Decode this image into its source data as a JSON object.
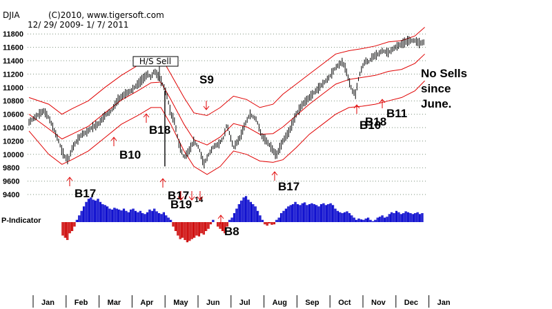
{
  "header": {
    "ticker": "DJIA",
    "copyright": "(C)2010, www.tigersoft.com",
    "date_range": "12/ 29/ 2009- 1/ 7/ 2011"
  },
  "chart_data": {
    "type": "line",
    "ylim": [
      9400,
      11800
    ],
    "yticks": [
      9400,
      9600,
      9800,
      10000,
      10200,
      10400,
      10600,
      10800,
      11000,
      11200,
      11400,
      11600,
      11800
    ],
    "months": [
      "Jan",
      "Feb",
      "Mar",
      "Apr",
      "May",
      "Jun",
      "Jul",
      "Aug",
      "Sep",
      "Oct",
      "Nov",
      "Dec",
      "Jan"
    ],
    "price_x_months": [
      0.0,
      0.15,
      0.3,
      0.45,
      0.6,
      0.75,
      0.9,
      1.0,
      1.1,
      1.2,
      1.3,
      1.45,
      1.6,
      1.75,
      1.9,
      2.1,
      2.3,
      2.5,
      2.7,
      2.9,
      3.1,
      3.3,
      3.5,
      3.6,
      3.7,
      3.8,
      3.9,
      4.0,
      4.1,
      4.2,
      4.3,
      4.4,
      4.55,
      4.7,
      4.85,
      5.0,
      5.15,
      5.3,
      5.45,
      5.6,
      5.75,
      5.9,
      6.0,
      6.2,
      6.4,
      6.55,
      6.7,
      6.9,
      7.05,
      7.2,
      7.35,
      7.5,
      7.7,
      7.9,
      8.1,
      8.3,
      8.5,
      8.7,
      8.9,
      9.1,
      9.3,
      9.5,
      9.6,
      9.7,
      9.8,
      9.9,
      10.0,
      10.1,
      10.2,
      10.3,
      10.4,
      10.5,
      10.6,
      10.7,
      10.9,
      11.1,
      11.3,
      11.5,
      11.7,
      11.85,
      12.0
    ],
    "price_values": [
      10480,
      10540,
      10600,
      10650,
      10550,
      10380,
      10200,
      10050,
      9950,
      9920,
      10080,
      10200,
      10300,
      10330,
      10400,
      10450,
      10580,
      10650,
      10820,
      10900,
      10950,
      11050,
      11150,
      11200,
      11150,
      11250,
      11180,
      11100,
      11000,
      10850,
      10600,
      10520,
      10150,
      9950,
      10050,
      10200,
      10100,
      9850,
      10000,
      10120,
      10150,
      10250,
      10450,
      10100,
      10250,
      10450,
      10600,
      10520,
      10280,
      10200,
      10100,
      9980,
      10200,
      10350,
      10600,
      10750,
      10850,
      10950,
      11050,
      11150,
      11300,
      11380,
      11280,
      11100,
      10950,
      10900,
      11150,
      11300,
      11400,
      11380,
      11450,
      11480,
      11500,
      11550,
      11520,
      11600,
      11650,
      11700,
      11700,
      11660,
      11680
    ],
    "upper_band_x_months": [
      0.0,
      0.6,
      1.0,
      1.3,
      1.8,
      2.3,
      2.8,
      3.3,
      3.7,
      4.0,
      4.3,
      4.7,
      5.0,
      5.4,
      5.8,
      6.2,
      6.6,
      7.0,
      7.4,
      7.7,
      8.1,
      8.5,
      8.9,
      9.3,
      9.7,
      10.1,
      10.5,
      10.9,
      11.3,
      11.7,
      12.0
    ],
    "upper_band": [
      10850,
      10750,
      10600,
      10680,
      10800,
      11000,
      11180,
      11330,
      11440,
      11460,
      11200,
      10850,
      10620,
      10580,
      10700,
      10870,
      10820,
      10700,
      10750,
      10900,
      11050,
      11200,
      11350,
      11500,
      11550,
      11580,
      11620,
      11680,
      11700,
      11770,
      11900
    ],
    "lower_band_x_months": [
      0.0,
      0.6,
      1.0,
      1.3,
      1.8,
      2.3,
      2.8,
      3.3,
      3.7,
      4.0,
      4.3,
      4.7,
      5.0,
      5.4,
      5.8,
      6.2,
      6.6,
      7.0,
      7.4,
      7.7,
      8.1,
      8.5,
      8.9,
      9.3,
      9.7,
      10.1,
      10.5,
      10.9,
      11.3,
      11.7,
      12.0
    ],
    "lower_band": [
      10350,
      10000,
      9850,
      9920,
      10050,
      10250,
      10450,
      10580,
      10700,
      10700,
      10450,
      10050,
      9820,
      9700,
      9820,
      10050,
      10000,
      9900,
      9880,
      9920,
      10100,
      10300,
      10450,
      10600,
      10700,
      10720,
      10750,
      10800,
      10850,
      10950,
      11100
    ],
    "mid_band_x_months": [
      0.0,
      0.6,
      1.0,
      1.3,
      1.8,
      2.3,
      2.8,
      3.3,
      3.7,
      4.0,
      4.3,
      4.7,
      5.0,
      5.4,
      5.8,
      6.2,
      6.6,
      7.0,
      7.4,
      7.7,
      8.1,
      8.5,
      8.9,
      9.3,
      9.7,
      10.1,
      10.5,
      10.9,
      11.3,
      11.7,
      12.0
    ],
    "mid_band": [
      10600,
      10380,
      10230,
      10300,
      10420,
      10620,
      10810,
      10950,
      11070,
      11080,
      10820,
      10450,
      10220,
      10140,
      10260,
      10460,
      10410,
      10300,
      10310,
      10410,
      10580,
      10750,
      10900,
      11050,
      11120,
      11150,
      11180,
      11240,
      11270,
      11360,
      11500
    ],
    "p_indicator": {
      "label": "P-Indicator",
      "values": [
        -30,
        -35,
        -40,
        -25,
        -20,
        -10,
        5,
        15,
        25,
        35,
        45,
        52,
        55,
        50,
        48,
        52,
        45,
        40,
        38,
        35,
        30,
        28,
        32,
        30,
        28,
        26,
        30,
        25,
        22,
        28,
        30,
        25,
        22,
        25,
        20,
        18,
        22,
        28,
        25,
        30,
        24,
        20,
        18,
        22,
        15,
        10,
        5,
        -10,
        -20,
        -30,
        -38,
        -35,
        -40,
        -45,
        -42,
        -38,
        -35,
        -30,
        -32,
        -25,
        -28,
        -20,
        -15,
        -5,
        5,
        0,
        -10,
        -15,
        -20,
        -25,
        -10,
        5,
        10,
        20,
        30,
        40,
        48,
        55,
        58,
        50,
        45,
        40,
        35,
        25,
        15,
        5,
        -5,
        -8,
        -3,
        -6,
        -5,
        5,
        10,
        20,
        25,
        30,
        35,
        38,
        40,
        45,
        40,
        38,
        42,
        44,
        38,
        40,
        42,
        40,
        38,
        35,
        40,
        42,
        38,
        40,
        42,
        38,
        30,
        25,
        22,
        20,
        22,
        24,
        20,
        15,
        10,
        5,
        8,
        6,
        5,
        8,
        10,
        5,
        2,
        5,
        10,
        12,
        15,
        10,
        12,
        18,
        22,
        20,
        25,
        22,
        18,
        20,
        24,
        22,
        20,
        18,
        20,
        22,
        18,
        20
      ]
    },
    "signals": [
      {
        "label": "H/S Sell",
        "x_month": 4.3,
        "y": 11430
      },
      {
        "label": "S9",
        "x_month": 6.1,
        "y": 11120
      },
      {
        "label": "B17",
        "x_month": 1.05,
        "y": 9400
      },
      {
        "label": "B10",
        "x_month": 3.1,
        "y": 9990
      },
      {
        "label": "B18",
        "x_month": 4.0,
        "y": 10400
      },
      {
        "label": "B17",
        "x_month": 4.3,
        "y": 9400
      },
      {
        "label": "B19",
        "x_month": 4.4,
        "y": 9300
      },
      {
        "label": "14",
        "x_month": 5.3,
        "y": 9330
      },
      {
        "label": "B8",
        "x_month": 6.7,
        "y": null
      },
      {
        "label": "B17",
        "x_month": 8.0,
        "y": 9500
      },
      {
        "label": "B10",
        "x_month": 10.1,
        "y": 10420
      },
      {
        "label": "B18",
        "x_month": 10.3,
        "y": 10470
      },
      {
        "label": "B11",
        "x_month": 11.0,
        "y": 10600
      }
    ],
    "note_lines": [
      "No Sells",
      "since",
      "June."
    ]
  }
}
